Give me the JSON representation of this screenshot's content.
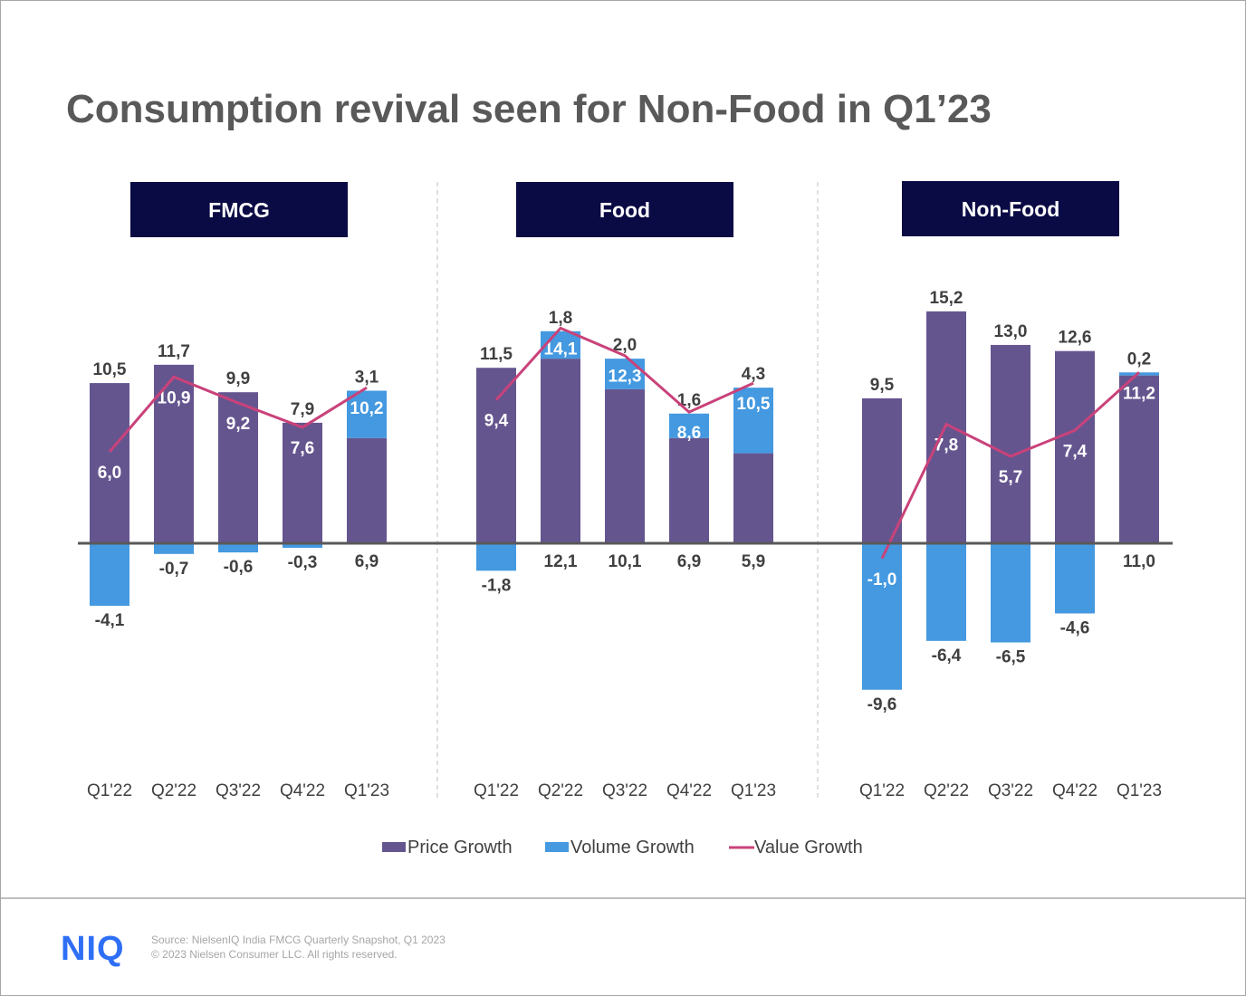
{
  "chart_data": {
    "type": "bar",
    "title": "Consumption revival seen for Non-Food in Q1’23",
    "categories": [
      "Q1'22",
      "Q2'22",
      "Q3'22",
      "Q4'22",
      "Q1'23"
    ],
    "stacked": true,
    "grid": false,
    "legend_placement": "bottom",
    "legend": [
      "Price Growth",
      "Volume Growth",
      "Value Growth"
    ],
    "colors": {
      "price": "#65558f",
      "volume": "#4499e0",
      "value": "#c9427a",
      "header": "#0a0a45"
    },
    "panels": [
      {
        "name": "FMCG",
        "price": [
          10.5,
          11.7,
          9.9,
          7.9,
          6.9
        ],
        "volume": [
          -4.1,
          -0.7,
          -0.6,
          -0.3,
          3.1
        ],
        "value": [
          6.0,
          10.9,
          9.2,
          7.6,
          10.2
        ]
      },
      {
        "name": "Food",
        "price": [
          11.5,
          12.1,
          10.1,
          6.9,
          5.9
        ],
        "volume": [
          -1.8,
          1.8,
          2.0,
          1.6,
          4.3
        ],
        "value": [
          9.4,
          14.1,
          12.3,
          8.6,
          10.5
        ]
      },
      {
        "name": "Non-Food",
        "price": [
          9.5,
          15.2,
          13.0,
          12.6,
          11.0
        ],
        "volume": [
          -9.6,
          -6.4,
          -6.5,
          -4.6,
          0.2
        ],
        "value": [
          -1.0,
          7.8,
          5.7,
          7.4,
          11.2
        ]
      }
    ]
  },
  "footer": {
    "logo": "NIQ",
    "source": "Source: NielsenIQ India FMCG Quarterly Snapshot, Q1 2023",
    "copyright": "© 2023 Nielsen Consumer LLC. All rights reserved."
  }
}
